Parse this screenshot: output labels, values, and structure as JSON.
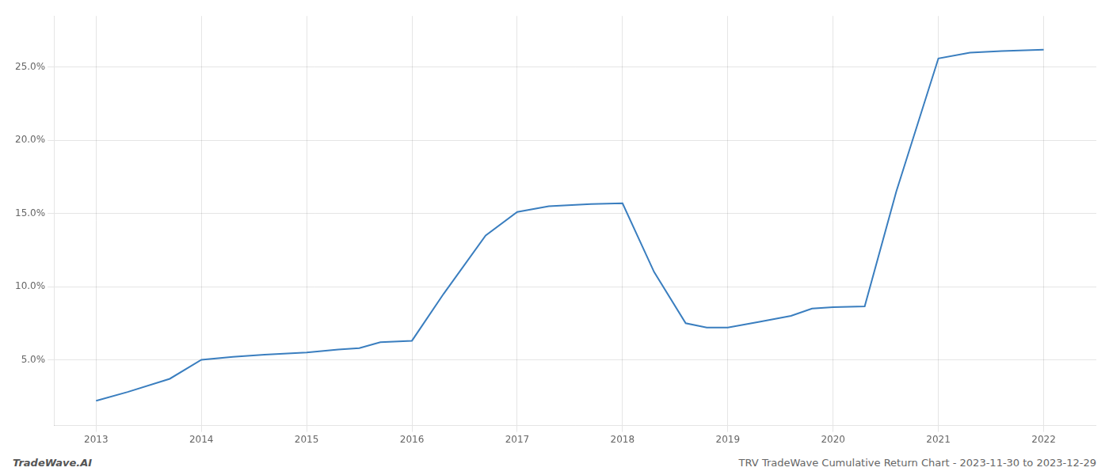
{
  "chart_data": {
    "type": "line",
    "title": "TRV TradeWave Cumulative Return Chart - 2023-11-30 to 2023-12-29",
    "annotations": [
      "TradeWave.AI"
    ],
    "x": [
      2013.0,
      2013.3,
      2013.7,
      2014.0,
      2014.3,
      2014.6,
      2015.0,
      2015.3,
      2015.5,
      2015.7,
      2016.0,
      2016.3,
      2016.7,
      2017.0,
      2017.3,
      2017.7,
      2018.0,
      2018.3,
      2018.6,
      2018.8,
      2019.0,
      2019.3,
      2019.6,
      2019.8,
      2020.0,
      2020.3,
      2020.6,
      2021.0,
      2021.3,
      2021.6,
      2022.0
    ],
    "values": [
      2.2,
      2.8,
      3.7,
      5.0,
      5.2,
      5.35,
      5.5,
      5.7,
      5.8,
      6.2,
      6.3,
      9.5,
      13.5,
      15.1,
      15.5,
      15.65,
      15.7,
      11.0,
      7.5,
      7.2,
      7.2,
      7.6,
      8.0,
      8.5,
      8.6,
      8.65,
      16.5,
      25.6,
      26.0,
      26.1,
      26.2
    ],
    "color": "#3a7ebf",
    "xlim": [
      2012.6,
      2022.5
    ],
    "ylim": [
      0.5,
      28.5
    ],
    "xticks": [
      2013,
      2014,
      2015,
      2016,
      2017,
      2018,
      2019,
      2020,
      2021,
      2022
    ],
    "yticks": [
      {
        "value": 5.0,
        "label": "5.0%"
      },
      {
        "value": 10.0,
        "label": "10.0%"
      },
      {
        "value": 15.0,
        "label": "15.0%"
      },
      {
        "value": 20.0,
        "label": "20.0%"
      },
      {
        "value": 25.0,
        "label": "25.0%"
      }
    ],
    "grid": true
  }
}
